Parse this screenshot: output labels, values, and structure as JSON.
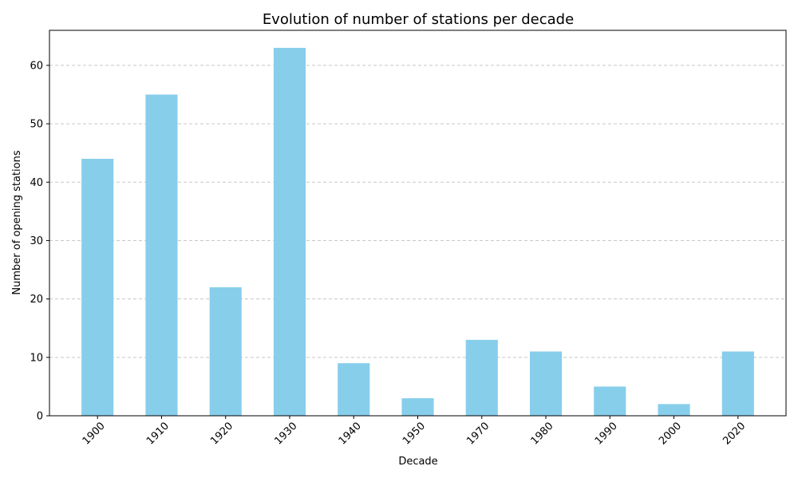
{
  "chart_data": {
    "type": "bar",
    "title": "Evolution of number of stations per decade",
    "xlabel": "Decade",
    "ylabel": "Number of opening stations",
    "categories": [
      "1900",
      "1910",
      "1920",
      "1930",
      "1940",
      "1950",
      "1970",
      "1980",
      "1990",
      "2000",
      "2020"
    ],
    "values": [
      44,
      55,
      22,
      63,
      9,
      3,
      13,
      11,
      5,
      2,
      11
    ],
    "ylim": [
      0,
      66
    ],
    "yticks": [
      0,
      10,
      20,
      30,
      40,
      50,
      60
    ],
    "grid": "y-dashed",
    "bar_color": "#87CEEB",
    "grid_color": "#c8c8c8",
    "axis_color": "#000000"
  }
}
